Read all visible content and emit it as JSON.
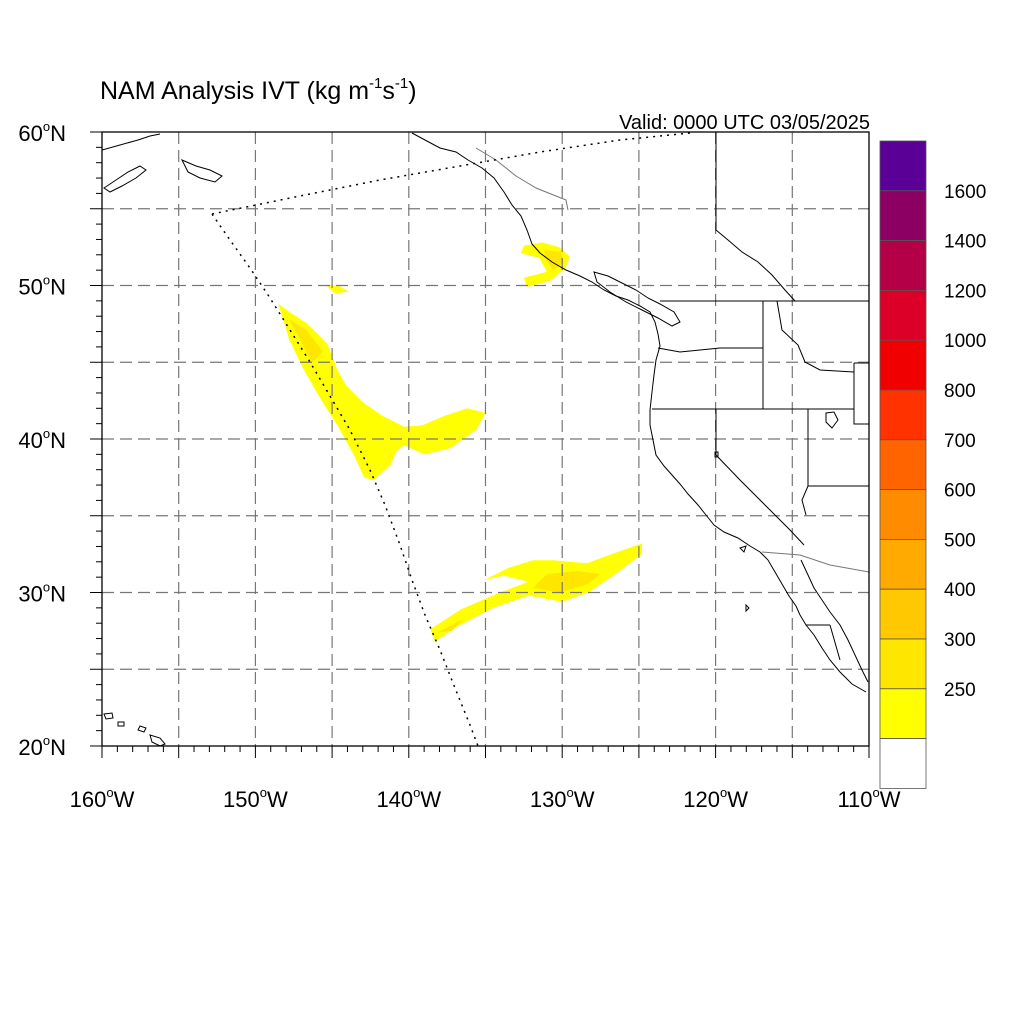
{
  "title": {
    "main": "NAM Analysis IVT (kg m",
    "sup1": "-1",
    "mid": "s",
    "sup2": "-1",
    "end": ")"
  },
  "valid_label": "Valid: 0000 UTC 03/05/2025",
  "map": {
    "projection": "cylindrical equidistant",
    "lon_range": [
      -160,
      -110
    ],
    "lat_range": [
      20,
      60
    ],
    "grid": "dashed every 5 degrees",
    "lat_ticks": [
      {
        "value": 60,
        "label": "60",
        "suffix": "N"
      },
      {
        "value": 50,
        "label": "50",
        "suffix": "N"
      },
      {
        "value": 40,
        "label": "40",
        "suffix": "N"
      },
      {
        "value": 30,
        "label": "30",
        "suffix": "N"
      },
      {
        "value": 20,
        "label": "20",
        "suffix": "N"
      }
    ],
    "lon_ticks": [
      {
        "value": -160,
        "label": "160",
        "suffix": "W"
      },
      {
        "value": -150,
        "label": "150",
        "suffix": "W"
      },
      {
        "value": -140,
        "label": "140",
        "suffix": "W"
      },
      {
        "value": -130,
        "label": "130",
        "suffix": "W"
      },
      {
        "value": -120,
        "label": "120",
        "suffix": "W"
      },
      {
        "value": -110,
        "label": "110",
        "suffix": "W"
      }
    ],
    "ivt_regions": [
      {
        "name": "British Columbia coast",
        "level": 250,
        "polygon": [
          [
            -132.5,
            52.6
          ],
          [
            -131.3,
            52.8
          ],
          [
            -130.2,
            52.5
          ],
          [
            -129.5,
            51.9
          ],
          [
            -129.8,
            51.1
          ],
          [
            -130.8,
            50.3
          ],
          [
            -132.3,
            49.9
          ],
          [
            -132.5,
            50.5
          ],
          [
            -131.0,
            50.9
          ],
          [
            -131.5,
            51.8
          ],
          [
            -132.7,
            52.1
          ]
        ]
      },
      {
        "name": "British Columbia coast core",
        "level": 300,
        "polygon": [
          [
            -131.2,
            52.3
          ],
          [
            -130.1,
            52.2
          ],
          [
            -129.9,
            51.5
          ],
          [
            -130.6,
            51.0
          ],
          [
            -131.0,
            51.6
          ]
        ]
      },
      {
        "name": "Small patch near 50N",
        "level": 250,
        "polygon": [
          [
            -145.4,
            50.0
          ],
          [
            -144.6,
            50.0
          ],
          [
            -143.9,
            49.6
          ],
          [
            -144.8,
            49.5
          ]
        ]
      },
      {
        "name": "Northeast Pacific plume",
        "level": 250,
        "polygon": [
          [
            -148.5,
            48.8
          ],
          [
            -147.8,
            48.3
          ],
          [
            -146.6,
            47.5
          ],
          [
            -145.3,
            46.2
          ],
          [
            -144.7,
            44.6
          ],
          [
            -144.1,
            43.5
          ],
          [
            -143.0,
            42.4
          ],
          [
            -141.7,
            41.5
          ],
          [
            -140.3,
            40.8
          ],
          [
            -139.1,
            40.9
          ],
          [
            -137.7,
            41.5
          ],
          [
            -136.2,
            42.0
          ],
          [
            -135.0,
            41.7
          ],
          [
            -135.6,
            40.6
          ],
          [
            -137.3,
            39.4
          ],
          [
            -139.0,
            39.0
          ],
          [
            -140.3,
            39.6
          ],
          [
            -140.8,
            39.2
          ],
          [
            -141.2,
            38.3
          ],
          [
            -142.3,
            37.3
          ],
          [
            -142.9,
            37.5
          ],
          [
            -143.6,
            39.0
          ],
          [
            -144.6,
            40.8
          ],
          [
            -145.8,
            42.7
          ],
          [
            -146.9,
            44.6
          ],
          [
            -147.8,
            46.5
          ]
        ]
      },
      {
        "name": "Northeast Pacific plume core",
        "level": 300,
        "polygon": [
          [
            -147.8,
            47.8
          ],
          [
            -146.7,
            47.1
          ],
          [
            -145.6,
            45.7
          ],
          [
            -146.3,
            45.0
          ]
        ]
      },
      {
        "name": "Subtropical plume",
        "level": 250,
        "polygon": [
          [
            -130.6,
            32.1
          ],
          [
            -128.4,
            31.9
          ],
          [
            -126.5,
            32.6
          ],
          [
            -124.8,
            33.2
          ],
          [
            -124.8,
            32.5
          ],
          [
            -126.8,
            31.0
          ],
          [
            -128.3,
            30.0
          ],
          [
            -130.0,
            29.4
          ],
          [
            -132.2,
            29.8
          ],
          [
            -134.5,
            29.0
          ],
          [
            -136.8,
            27.8
          ],
          [
            -138.3,
            26.8
          ],
          [
            -138.6,
            27.6
          ],
          [
            -136.6,
            28.9
          ],
          [
            -134.3,
            29.9
          ],
          [
            -132.2,
            30.7
          ],
          [
            -133.8,
            31.1
          ],
          [
            -135.1,
            30.8
          ],
          [
            -133.5,
            31.6
          ],
          [
            -131.9,
            32.1
          ]
        ]
      },
      {
        "name": "Subtropical plume core",
        "level": 300,
        "polygon": [
          [
            -131.0,
            31.2
          ],
          [
            -129.0,
            31.4
          ],
          [
            -127.5,
            31.2
          ],
          [
            -128.4,
            30.5
          ],
          [
            -130.2,
            30.0
          ],
          [
            -131.9,
            30.3
          ]
        ]
      },
      {
        "name": "Subtropical plume tail",
        "level": 300,
        "polygon": [
          [
            -138.1,
            27.4
          ],
          [
            -136.4,
            28.3
          ],
          [
            -137.2,
            27.5
          ]
        ]
      }
    ]
  },
  "colorbar": {
    "levels": [
      {
        "value": 250,
        "label": "250",
        "color": "#ffff00"
      },
      {
        "value": 300,
        "label": "300",
        "color": "#ffe600"
      },
      {
        "value": 400,
        "label": "400",
        "color": "#ffc800"
      },
      {
        "value": 500,
        "label": "500",
        "color": "#ffaa00"
      },
      {
        "value": 600,
        "label": "600",
        "color": "#ff8c00"
      },
      {
        "value": 700,
        "label": "700",
        "color": "#ff6400"
      },
      {
        "value": 800,
        "label": "800",
        "color": "#ff3200"
      },
      {
        "value": 1000,
        "label": "1000",
        "color": "#f00000"
      },
      {
        "value": 1200,
        "label": "1200",
        "color": "#dc0028"
      },
      {
        "value": 1400,
        "label": "1400",
        "color": "#b40046"
      },
      {
        "value": 1600,
        "label": "1600",
        "color": "#8c0064"
      }
    ],
    "top_color": "#5a0096",
    "below_color": "#ffffff"
  }
}
